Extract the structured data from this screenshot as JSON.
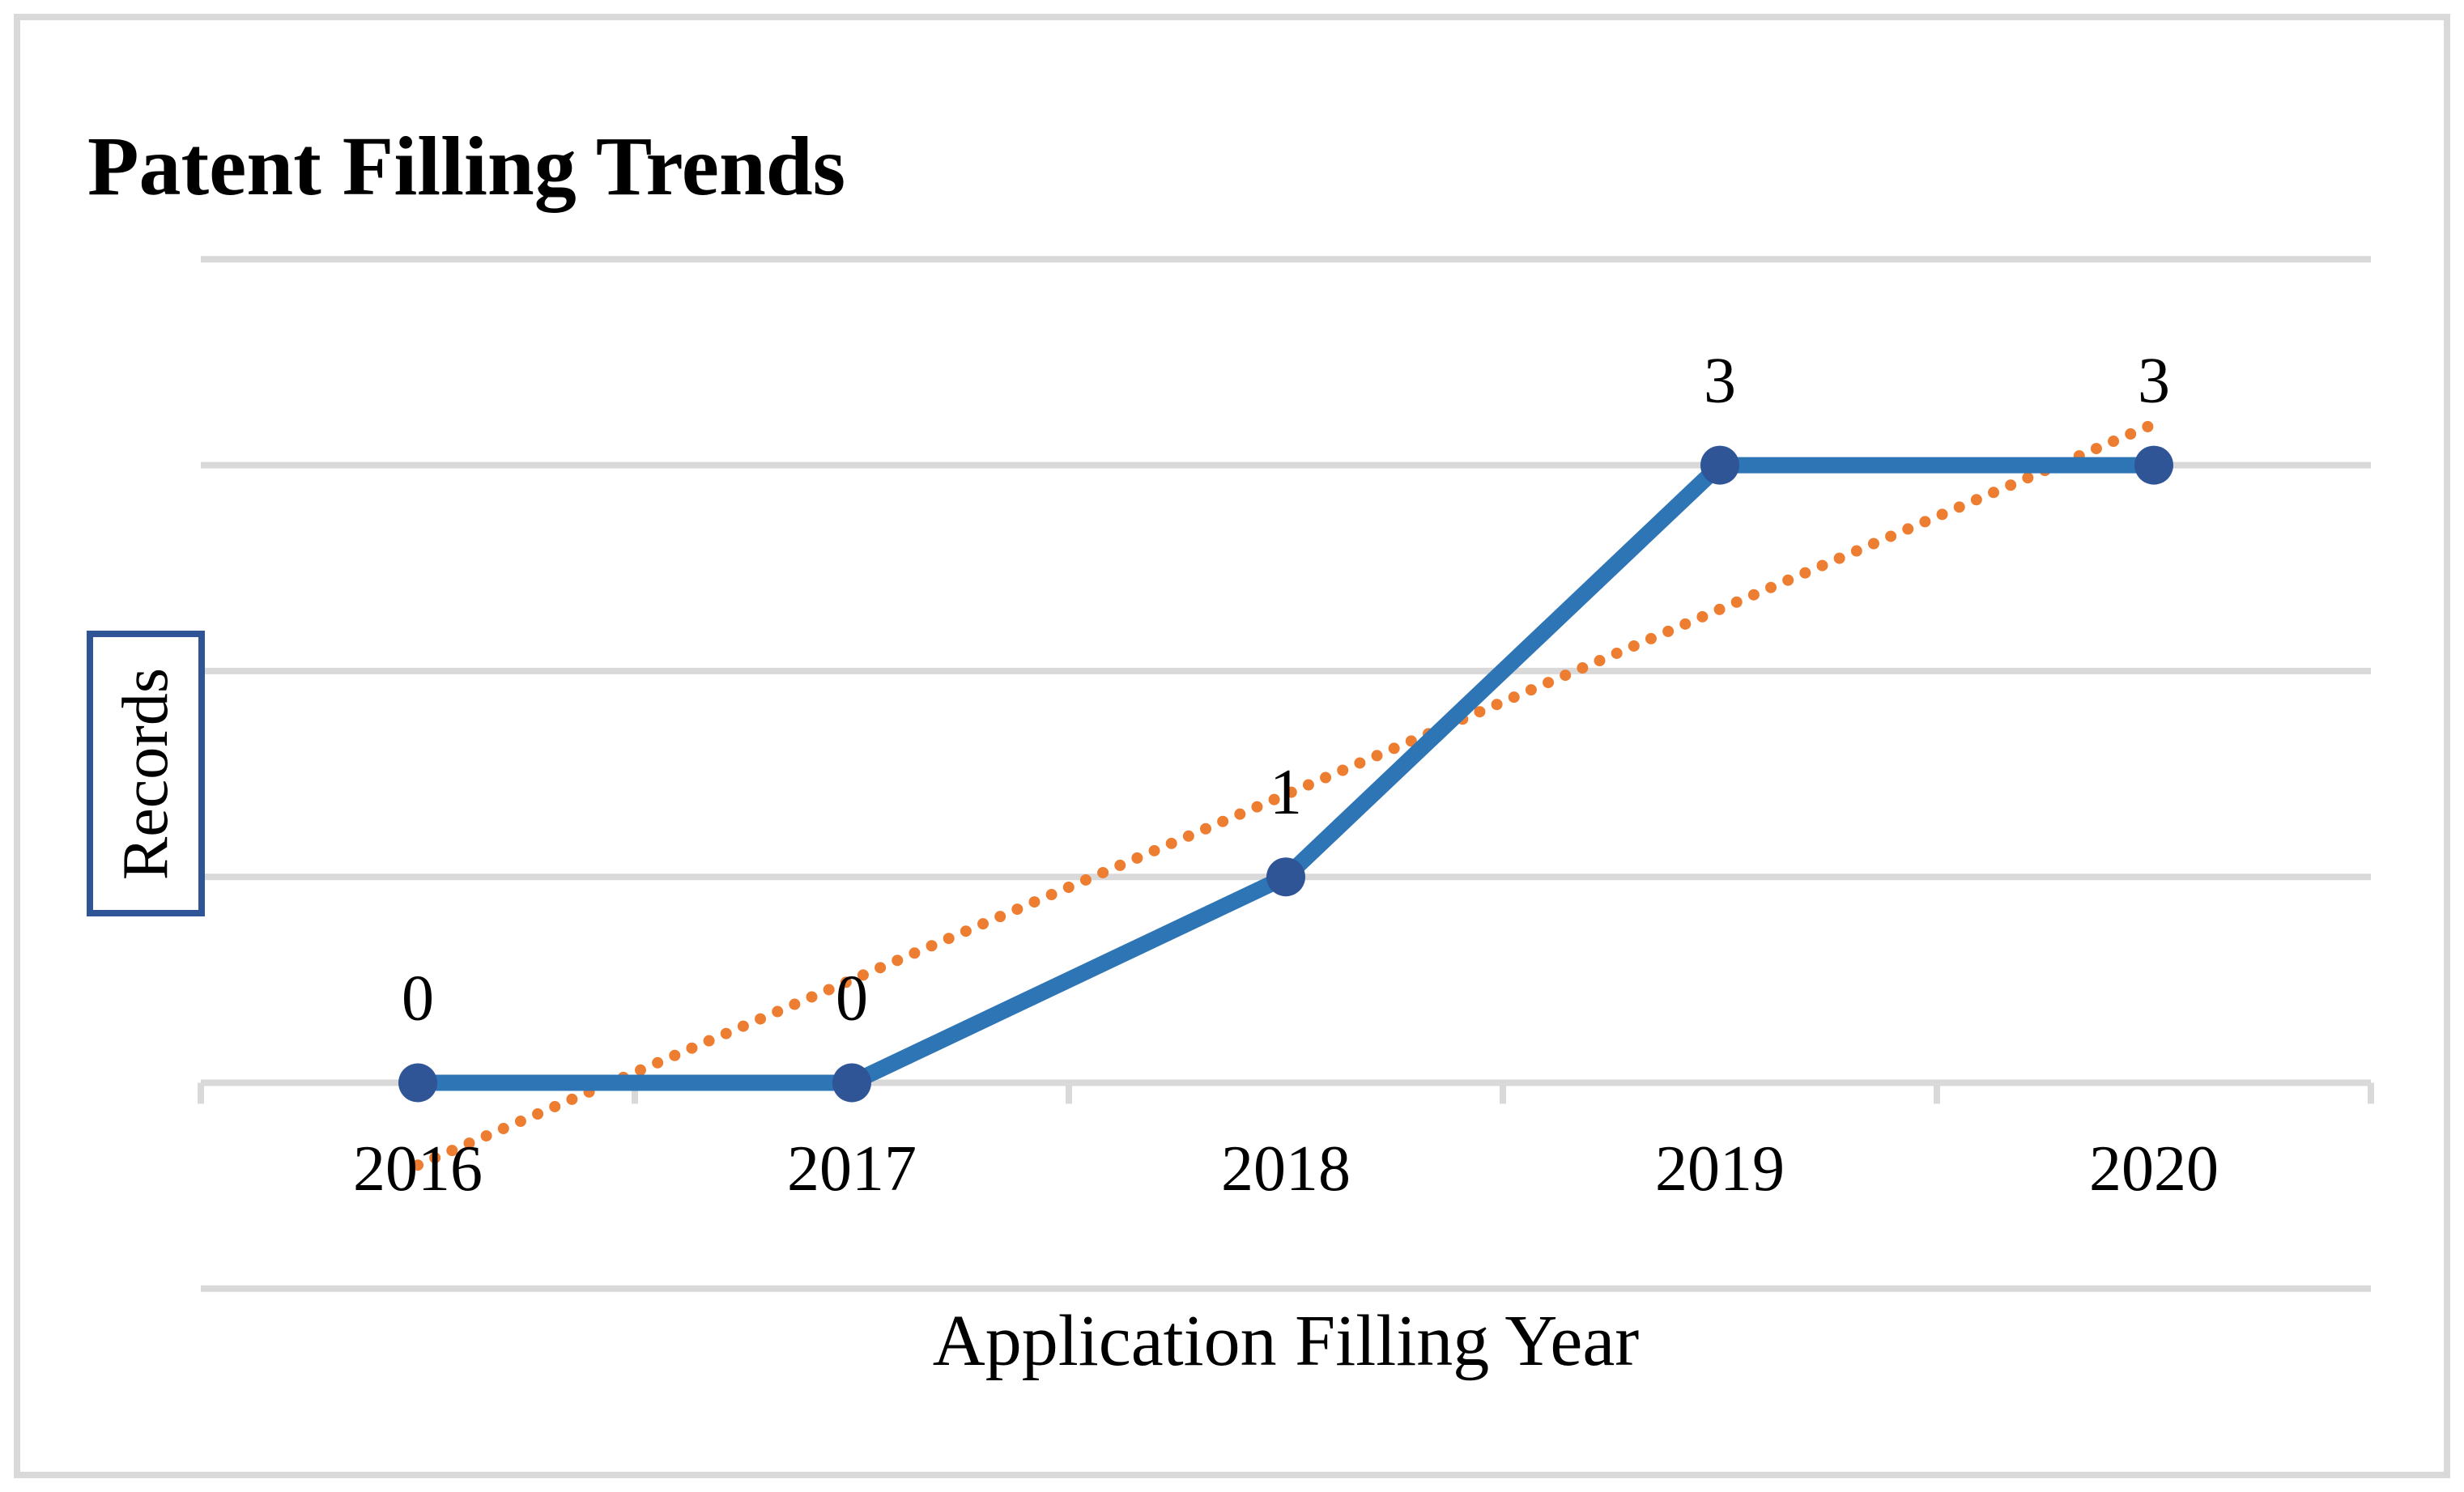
{
  "title": "Patent Filling Trends",
  "chart_data": {
    "type": "line",
    "title": "Patent Filling Trends",
    "xlabel": "Application Filling Year",
    "ylabel": "Records",
    "categories": [
      "2016",
      "2017",
      "2018",
      "2019",
      "2020"
    ],
    "series": [
      {
        "name": "Records",
        "values": [
          0,
          0,
          1,
          3,
          3
        ]
      }
    ],
    "data_labels": [
      "0",
      "0",
      "1",
      "3",
      "3"
    ],
    "trendline": {
      "type": "linear",
      "slope": 0.9,
      "intercept": -0.4
    },
    "ylim": [
      -1,
      4
    ],
    "grid": true,
    "y_axis_tick_labels_visible": false,
    "legend_position": "none",
    "colors": {
      "series_line": "#2E75B6",
      "marker": "#2F5597",
      "trendline": "#ED7D31",
      "gridline": "#D9D9D9",
      "axis_line": "#D9D9D9",
      "text": "#000000",
      "ylabel_box_border": "#2F5597",
      "frame_border": "#D9D9D9"
    }
  }
}
